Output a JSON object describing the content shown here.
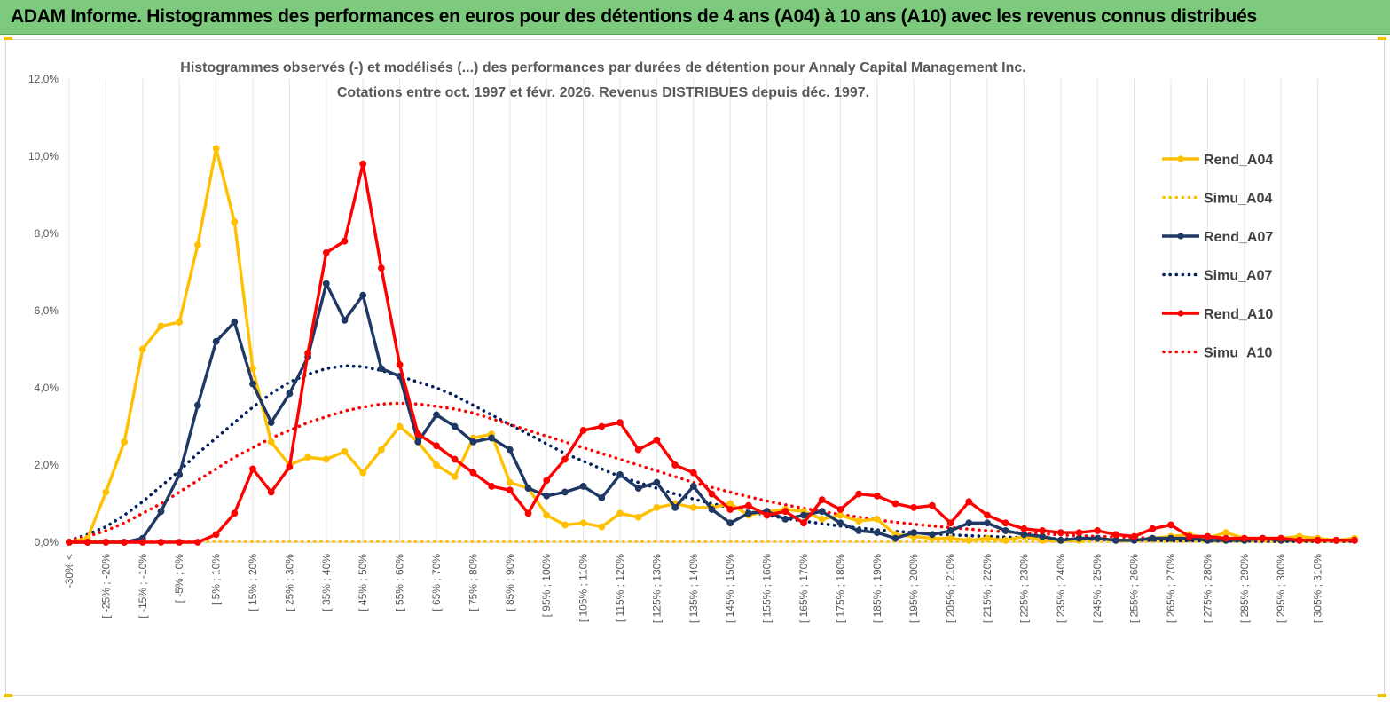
{
  "header": {
    "title": "ADAM Informe. Histogrammes des performances en euros pour des détentions de 4 ans (A04) à 10 ans (A10) avec les revenus connus distribués"
  },
  "chart_data": {
    "type": "line",
    "title_line1": "Histogrammes observés (-) et modélisés (...) des performances par durées de détention pour Annaly Capital Management Inc.",
    "title_line2": "Cotations entre oct. 1997 et févr. 2026. Revenus DISTRIBUES depuis déc. 1997.",
    "xlabel": "",
    "ylabel": "",
    "ylim": [
      0,
      12
    ],
    "y_ticks": [
      "0,0%",
      "2,0%",
      "4,0%",
      "6,0%",
      "8,0%",
      "10,0%",
      "12,0%"
    ],
    "y_tick_values": [
      0,
      2,
      4,
      6,
      8,
      10,
      12
    ],
    "grid": "vertical",
    "legend_position": "right",
    "categories_labelled": [
      "-30% <",
      "[ -25% ; -20%",
      "[ -15% ; -10%",
      "[ -5% ; 0%",
      "[ 5% ; 10%",
      "[ 15% ; 20%",
      "[ 25% ; 30%",
      "[ 35% ; 40%",
      "[ 45% ; 50%",
      "[ 55% ; 60%",
      "[ 65% ; 70%",
      "[ 75% ; 80%",
      "[ 85% ; 90%",
      "[ 95% ; 100%",
      "[ 105% ; 110%",
      "[ 115% ; 120%",
      "[ 125% ; 130%",
      "[ 135% ; 140%",
      "[ 145% ; 150%",
      "[ 155% ; 160%",
      "[ 165% ; 170%",
      "[ 175% ; 180%",
      "[ 185% ; 190%",
      "[ 195% ; 200%",
      "[ 205% ; 210%",
      "[ 215% ; 220%",
      "[ 225% ; 230%",
      "[ 235% ; 240%",
      "[ 245% ; 250%",
      "[ 255% ; 260%",
      "[ 265% ; 270%",
      "[ 275% ; 280%",
      "[ 285% ; 290%",
      "[ 295% ; 300%",
      "[ 305% ; 310%"
    ],
    "series": [
      {
        "name": "Rend_A04",
        "style": "solid",
        "markers": true,
        "color": "#ffc000",
        "values": [
          0,
          0.1,
          1.3,
          2.6,
          5.0,
          5.6,
          5.7,
          7.7,
          10.2,
          8.3,
          4.5,
          2.6,
          2.0,
          2.2,
          2.15,
          2.35,
          1.8,
          2.4,
          3.0,
          2.6,
          2.0,
          1.7,
          2.7,
          2.8,
          1.55,
          1.4,
          0.7,
          0.45,
          0.5,
          0.4,
          0.75,
          0.65,
          0.9,
          1.0,
          0.9,
          0.9,
          1.0,
          0.7,
          0.8,
          0.85,
          0.8,
          0.6,
          0.7,
          0.55,
          0.6,
          0.2,
          0.15,
          0.1,
          0.1,
          0.05,
          0.1,
          0.05,
          0.15,
          0.05,
          0.05,
          0.05,
          0.1,
          0.05,
          0.05,
          0.1,
          0.15,
          0.2,
          0.1,
          0.25,
          0.1,
          0.1,
          0.1,
          0.15,
          0.1,
          0.05,
          0.1
        ]
      },
      {
        "name": "Simu_A04",
        "style": "dotted",
        "markers": false,
        "color": "#ffc000",
        "values": [
          0.02,
          0.02,
          0.02,
          0.02,
          0.02,
          0.02,
          0.02,
          0.02,
          0.02,
          0.02,
          0.02,
          0.02,
          0.02,
          0.02,
          0.02,
          0.02,
          0.02,
          0.02,
          0.02,
          0.02,
          0.02,
          0.02,
          0.02,
          0.02,
          0.02,
          0.02,
          0.02,
          0.02,
          0.02,
          0.02,
          0.02,
          0.02,
          0.02,
          0.02,
          0.02,
          0.02,
          0.02,
          0.02,
          0.02,
          0.02,
          0.02,
          0.02,
          0.02,
          0.02,
          0.02,
          0.02,
          0.02,
          0.02,
          0.02,
          0.02,
          0.02,
          0.02,
          0.02,
          0.02,
          0.02,
          0.02,
          0.02,
          0.02,
          0.02,
          0.02,
          0.02,
          0.02,
          0.02,
          0.02,
          0.02,
          0.02,
          0.02,
          0.02,
          0.02,
          0.02,
          0.02
        ]
      },
      {
        "name": "Rend_A07",
        "style": "solid",
        "markers": true,
        "color": "#1f3864",
        "values": [
          0,
          0,
          0,
          0,
          0.1,
          0.8,
          1.75,
          3.55,
          5.2,
          5.7,
          4.1,
          3.1,
          3.85,
          4.8,
          6.7,
          5.75,
          6.4,
          4.5,
          4.3,
          2.6,
          3.3,
          3.0,
          2.6,
          2.7,
          2.4,
          1.4,
          1.2,
          1.3,
          1.45,
          1.15,
          1.75,
          1.4,
          1.55,
          0.9,
          1.45,
          0.85,
          0.5,
          0.75,
          0.8,
          0.6,
          0.7,
          0.8,
          0.5,
          0.3,
          0.25,
          0.1,
          0.25,
          0.2,
          0.3,
          0.5,
          0.5,
          0.3,
          0.2,
          0.15,
          0.05,
          0.1,
          0.1,
          0.05,
          0.05,
          0.1,
          0.1,
          0.1,
          0.05,
          0.05,
          0.05,
          0.1,
          0.05,
          0.05,
          0.05,
          0.05,
          0.05
        ]
      },
      {
        "name": "Simu_A07",
        "style": "dotted",
        "markers": false,
        "color": "#002060",
        "values": [
          0.05,
          0.2,
          0.4,
          0.7,
          1.05,
          1.45,
          1.85,
          2.3,
          2.7,
          3.1,
          3.5,
          3.85,
          4.15,
          4.35,
          4.5,
          4.57,
          4.55,
          4.45,
          4.3,
          4.15,
          4.0,
          3.8,
          3.55,
          3.3,
          3.05,
          2.8,
          2.55,
          2.3,
          2.1,
          1.9,
          1.7,
          1.55,
          1.4,
          1.25,
          1.12,
          1.0,
          0.9,
          0.8,
          0.7,
          0.62,
          0.55,
          0.48,
          0.42,
          0.37,
          0.32,
          0.28,
          0.25,
          0.22,
          0.19,
          0.17,
          0.15,
          0.13,
          0.12,
          0.1,
          0.09,
          0.08,
          0.07,
          0.06,
          0.05,
          0.05,
          0.04,
          0.04,
          0.03,
          0.03,
          0.03,
          0.02,
          0.02,
          0.02,
          0.02,
          0.02,
          0.02
        ]
      },
      {
        "name": "Rend_A10",
        "style": "solid",
        "markers": true,
        "color": "#ff0000",
        "values": [
          0,
          0,
          0,
          0,
          0,
          0,
          0,
          0,
          0.2,
          0.75,
          1.9,
          1.3,
          1.95,
          4.9,
          7.5,
          7.8,
          9.8,
          7.1,
          4.6,
          2.8,
          2.5,
          2.15,
          1.8,
          1.45,
          1.35,
          0.75,
          1.6,
          2.15,
          2.9,
          3.0,
          3.1,
          2.4,
          2.65,
          2.0,
          1.8,
          1.25,
          0.85,
          0.95,
          0.7,
          0.8,
          0.5,
          1.1,
          0.85,
          1.25,
          1.2,
          1.0,
          0.9,
          0.95,
          0.5,
          1.05,
          0.7,
          0.5,
          0.35,
          0.3,
          0.25,
          0.25,
          0.3,
          0.2,
          0.15,
          0.35,
          0.45,
          0.15,
          0.15,
          0.1,
          0.1,
          0.1,
          0.1,
          0.05,
          0.05,
          0.05,
          0.05
        ]
      },
      {
        "name": "Simu_A10",
        "style": "dotted",
        "markers": false,
        "color": "#ff0000",
        "values": [
          0.05,
          0.15,
          0.3,
          0.5,
          0.75,
          1.0,
          1.3,
          1.6,
          1.9,
          2.2,
          2.45,
          2.7,
          2.9,
          3.1,
          3.25,
          3.4,
          3.5,
          3.58,
          3.6,
          3.58,
          3.52,
          3.45,
          3.35,
          3.2,
          3.05,
          2.9,
          2.75,
          2.6,
          2.45,
          2.3,
          2.15,
          2.0,
          1.85,
          1.7,
          1.55,
          1.42,
          1.3,
          1.18,
          1.07,
          0.97,
          0.88,
          0.8,
          0.72,
          0.65,
          0.58,
          0.52,
          0.47,
          0.42,
          0.38,
          0.34,
          0.3,
          0.27,
          0.24,
          0.22,
          0.19,
          0.17,
          0.15,
          0.14,
          0.12,
          0.11,
          0.1,
          0.09,
          0.08,
          0.07,
          0.06,
          0.06,
          0.05,
          0.05,
          0.04,
          0.04,
          0.04
        ]
      }
    ]
  }
}
